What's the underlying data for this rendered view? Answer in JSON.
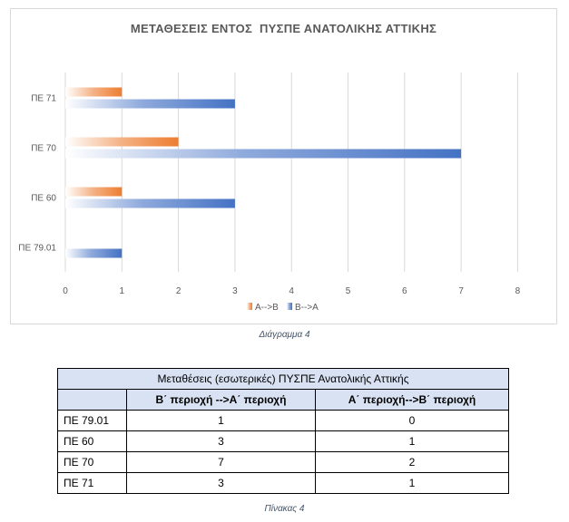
{
  "chart_data": {
    "type": "bar",
    "orientation": "horizontal",
    "title": "ΜΕΤΑΘΕΣΕΙΣ ΕΝΤΟΣ  ΠΥΣΠΕ ΑΝΑΤΟΛΙΚΗΣ ΑΤΤΙΚΗΣ",
    "categories": [
      "ΠΕ 79.01",
      "ΠΕ 60",
      "ΠΕ 70",
      "ΠΕ 71"
    ],
    "series": [
      {
        "name": "Α-->Β",
        "color": "#ed7d31",
        "values": [
          0,
          1,
          2,
          1
        ]
      },
      {
        "name": "Β-->Α",
        "color": "#4472c4",
        "values": [
          1,
          3,
          7,
          3
        ]
      }
    ],
    "xlim": [
      0,
      8
    ],
    "xticks": [
      "0",
      "1",
      "2",
      "3",
      "4",
      "5",
      "6",
      "7",
      "8"
    ],
    "grid": true,
    "legend": "bottom"
  },
  "chart_caption": "Διάγραμμα 4",
  "table": {
    "title": "Μεταθέσεις (εσωτερικές) ΠΥΣΠΕ Ανατολικής Αττικής",
    "headers": [
      "",
      "Β΄ περιοχή -->Α΄ περιοχή",
      "Α΄ περιοχή-->Β΄ περιοχή"
    ],
    "rows": [
      [
        "ΠΕ 79.01",
        "1",
        "0"
      ],
      [
        "ΠΕ 60",
        "3",
        "1"
      ],
      [
        "ΠΕ 70",
        "7",
        "2"
      ],
      [
        "ΠΕ 71",
        "3",
        "1"
      ]
    ]
  },
  "table_caption": "Πίνακας 4"
}
